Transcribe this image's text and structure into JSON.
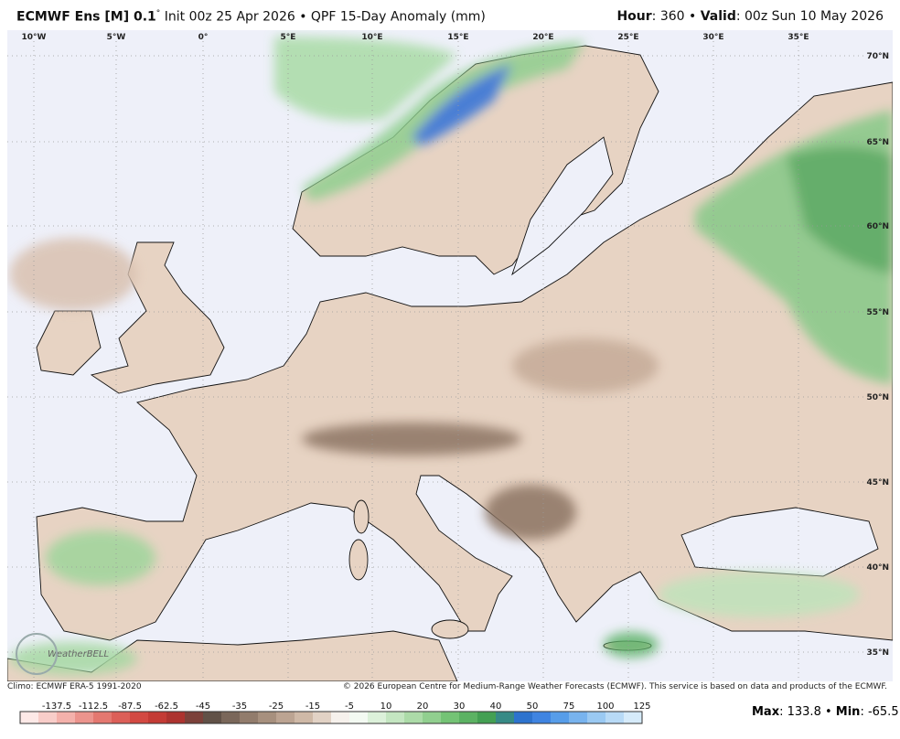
{
  "header": {
    "model": "ECMWF Ens [M] 0.1",
    "degree": "°",
    "description": " Init 00z 25 Apr 2026 • QPF 15-Day Anomaly (mm)",
    "hour_label": "Hour",
    "hour_value": ": 360 • ",
    "valid_label": "Valid",
    "valid_value": ": 00z Sun 10 May 2026"
  },
  "map": {
    "longitudes": [
      "10°W",
      "5°W",
      "0°",
      "5°E",
      "10°E",
      "15°E",
      "20°E",
      "25°E",
      "30°E",
      "35°E"
    ],
    "latitudes": [
      "70°N",
      "65°N",
      "60°N",
      "55°N",
      "50°N",
      "45°N",
      "40°N",
      "35°N"
    ],
    "watermark": "WeatherBELL"
  },
  "footer": {
    "climo": "Climo: ECMWF ERA-5 1991-2020",
    "copyright": "© 2026 European Centre for Medium-Range Weather Forecasts (ECMWF). This service is based on data and products of the ECMWF."
  },
  "colorbar": {
    "labels": [
      "-137.5",
      "-112.5",
      "-87.5",
      "-62.5",
      "-45",
      "-35",
      "-25",
      "-15",
      "-5",
      "10",
      "20",
      "30",
      "40",
      "50",
      "75",
      "100",
      "125"
    ]
  },
  "stats": {
    "max_label": "Max",
    "max_value": ": 133.8 • ",
    "min_label": "Min",
    "min_value": ": -65.5"
  }
}
